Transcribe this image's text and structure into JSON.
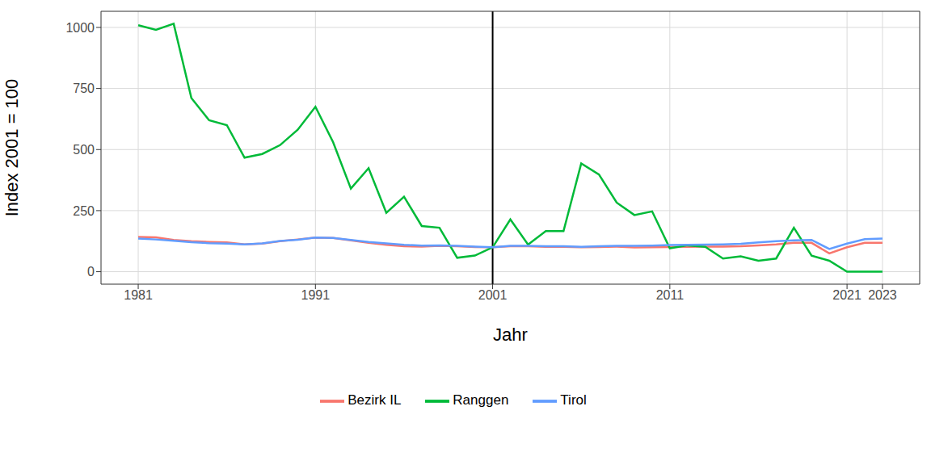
{
  "chart_data": {
    "type": "line",
    "x_label": "Jahr",
    "y_label": "Index 2001 = 100",
    "x": [
      1981,
      1982,
      1983,
      1984,
      1985,
      1986,
      1987,
      1988,
      1989,
      1990,
      1991,
      1992,
      1993,
      1994,
      1995,
      1996,
      1997,
      1998,
      1999,
      2000,
      2001,
      2002,
      2003,
      2004,
      2005,
      2006,
      2007,
      2008,
      2009,
      2010,
      2011,
      2012,
      2013,
      2014,
      2015,
      2016,
      2017,
      2018,
      2019,
      2020,
      2021,
      2022,
      2023
    ],
    "series": [
      {
        "name": "Bezirk IL",
        "color": "#F8766D",
        "values": [
          142,
          141,
          130,
          125,
          122,
          120,
          112,
          115,
          125,
          132,
          140,
          138,
          128,
          118,
          110,
          104,
          103,
          106,
          104,
          101,
          100,
          104,
          104,
          102,
          102,
          100,
          101,
          103,
          99,
          100,
          101,
          102,
          103,
          103,
          104,
          108,
          112,
          118,
          118,
          75,
          100,
          118,
          118
        ]
      },
      {
        "name": "Ranggen",
        "color": "#00BA38",
        "values": [
          1009,
          990,
          1015,
          711,
          620,
          600,
          467,
          482,
          518,
          581,
          675,
          530,
          340,
          424,
          241,
          307,
          187,
          180,
          57,
          66,
          100,
          214,
          111,
          166,
          166,
          443,
          398,
          283,
          232,
          247,
          96,
          108,
          102,
          54,
          63,
          45,
          54,
          180,
          66,
          45,
          0,
          0,
          0
        ]
      },
      {
        "name": "Tirol",
        "color": "#619CFF",
        "values": [
          136,
          132,
          127,
          121,
          117,
          115,
          112,
          116,
          126,
          131,
          140,
          138,
          130,
          122,
          116,
          110,
          107,
          108,
          106,
          103,
          100,
          106,
          106,
          104,
          104,
          102,
          104,
          106,
          106,
          107,
          109,
          110,
          111,
          112,
          114,
          120,
          125,
          128,
          130,
          93,
          115,
          133,
          136
        ]
      }
    ],
    "xlim": [
      1978.9,
      2025.1
    ],
    "xticks": [
      1981,
      1991,
      2001,
      2011,
      2021,
      2023
    ],
    "ylim": [
      -51,
      1066
    ],
    "yticks": [
      0,
      250,
      500,
      750,
      1000
    ],
    "vline": 2001,
    "grid": true,
    "legend": "bottom"
  }
}
